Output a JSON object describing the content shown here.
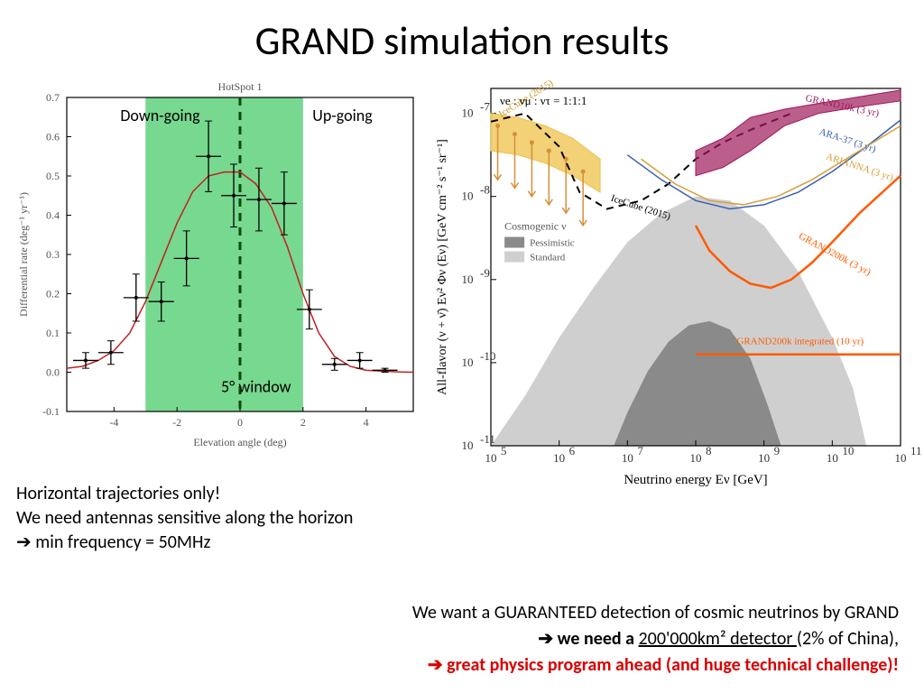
{
  "title": "GRAND simulation results",
  "left_chart": {
    "type": "scatter-with-errorbars-and-curve",
    "title": "HotSpot 1",
    "xlabel": "Elevation angle (deg)",
    "ylabel": "Differential rate (deg⁻¹ yr⁻¹)",
    "xlim": [
      -5.5,
      5.5
    ],
    "xtick_step": 2,
    "ylim": [
      -0.1,
      0.7
    ],
    "ytick_step": 0.1,
    "green_band": {
      "xmin": -3.0,
      "xmax": 2.0,
      "color": "#77d88f"
    },
    "dashed_vline_x": 0.0,
    "dashed_color": "#0a4a0a",
    "data_points": [
      {
        "x": -4.9,
        "y": 0.03,
        "ey": 0.02
      },
      {
        "x": -4.1,
        "y": 0.05,
        "ey": 0.03
      },
      {
        "x": -3.3,
        "y": 0.19,
        "ey": 0.06
      },
      {
        "x": -2.5,
        "y": 0.18,
        "ey": 0.05
      },
      {
        "x": -1.7,
        "y": 0.29,
        "ey": 0.07
      },
      {
        "x": -1.0,
        "y": 0.55,
        "ey": 0.09
      },
      {
        "x": -0.2,
        "y": 0.45,
        "ey": 0.08
      },
      {
        "x": 0.6,
        "y": 0.44,
        "ey": 0.08
      },
      {
        "x": 1.4,
        "y": 0.43,
        "ey": 0.08
      },
      {
        "x": 2.2,
        "y": 0.16,
        "ey": 0.05
      },
      {
        "x": 3.0,
        "y": 0.02,
        "ey": 0.015
      },
      {
        "x": 3.8,
        "y": 0.03,
        "ey": 0.02
      },
      {
        "x": 4.6,
        "y": 0.005,
        "ey": 0.005
      }
    ],
    "curve_color": "#c02020",
    "curve": [
      [
        -5.5,
        0.01
      ],
      [
        -5,
        0.015
      ],
      [
        -4.5,
        0.03
      ],
      [
        -4,
        0.055
      ],
      [
        -3.5,
        0.1
      ],
      [
        -3,
        0.18
      ],
      [
        -2.5,
        0.28
      ],
      [
        -2,
        0.38
      ],
      [
        -1.5,
        0.46
      ],
      [
        -1,
        0.5
      ],
      [
        -0.5,
        0.51
      ],
      [
        0,
        0.51
      ],
      [
        0.5,
        0.48
      ],
      [
        1,
        0.42
      ],
      [
        1.5,
        0.32
      ],
      [
        2,
        0.2
      ],
      [
        2.5,
        0.1
      ],
      [
        3,
        0.04
      ],
      [
        3.5,
        0.015
      ],
      [
        4,
        0.005
      ],
      [
        5,
        0.001
      ],
      [
        5.5,
        0.0
      ]
    ],
    "annotations": {
      "down_going": "Down-going",
      "up_going": "Up-going",
      "window": "5° window"
    },
    "axis_fontsize": 14,
    "tick_fontsize": 11
  },
  "right_chart": {
    "type": "sensitivity-plot-loglog",
    "xlabel": "Neutrino energy Eν [GeV]",
    "ylabel": "All-flavor (ν + ν̄) Eν² Φν (Eν) [GeV cm⁻² s⁻¹ sr⁻¹]",
    "top_text": "νe : νμ : ντ = 1:1:1",
    "xlim_log": [
      5,
      11
    ],
    "ylim_log": [
      -11,
      -6.7
    ],
    "xtick_log": [
      5,
      6,
      7,
      8,
      9,
      10,
      11
    ],
    "ytick_log": [
      -11,
      -10,
      -9,
      -8,
      -7
    ],
    "grey_regions": {
      "standard_color": "#cfcfcf",
      "pessimistic_color": "#8a8a8a"
    },
    "legend_box": {
      "title": "Cosmogenic ν",
      "items": [
        "Pessimistic",
        "Standard"
      ]
    },
    "curves": {
      "icecube_limit": {
        "label": "IceCube (2015)",
        "color": "#000000",
        "dash": true,
        "width": 2,
        "pts": [
          [
            5,
            -7.1
          ],
          [
            5.5,
            -7.0
          ],
          [
            6,
            -7.4
          ],
          [
            6.3,
            -7.95
          ],
          [
            6.7,
            -8.15
          ],
          [
            7.2,
            -8.05
          ],
          [
            7.6,
            -7.85
          ],
          [
            8,
            -7.55
          ],
          [
            8.4,
            -7.35
          ],
          [
            8.8,
            -7.2
          ],
          [
            9.4,
            -7.0
          ]
        ]
      },
      "grand10k": {
        "label": "GRAND10k (3 yr)",
        "color": "#9e1a5a",
        "fill": "rgba(158,26,90,0.7)",
        "band_top": [
          [
            8,
            -7.45
          ],
          [
            8.4,
            -7.3
          ],
          [
            8.8,
            -7.05
          ],
          [
            9.3,
            -6.95
          ],
          [
            9.8,
            -6.88
          ],
          [
            10.4,
            -6.8
          ],
          [
            11,
            -6.72
          ]
        ],
        "band_bot": [
          [
            8,
            -7.75
          ],
          [
            8.4,
            -7.65
          ],
          [
            8.8,
            -7.45
          ],
          [
            9.3,
            -7.15
          ],
          [
            9.8,
            -7.0
          ],
          [
            10.4,
            -6.92
          ],
          [
            11,
            -6.85
          ]
        ]
      },
      "ara37": {
        "label": "ARA-37 (3 yr)",
        "color": "#3a5fb0",
        "width": 1.5,
        "pts": [
          [
            7,
            -7.5
          ],
          [
            7.5,
            -7.8
          ],
          [
            8,
            -8.05
          ],
          [
            8.5,
            -8.15
          ],
          [
            9,
            -8.1
          ],
          [
            9.5,
            -7.95
          ],
          [
            10,
            -7.7
          ],
          [
            10.5,
            -7.4
          ],
          [
            11,
            -7.08
          ]
        ]
      },
      "arianna": {
        "label": "ARIANNA (3 yr)",
        "color": "#d4a13a",
        "width": 1.5,
        "pts": [
          [
            7.2,
            -7.55
          ],
          [
            7.7,
            -7.85
          ],
          [
            8.2,
            -8.05
          ],
          [
            8.7,
            -8.1
          ],
          [
            9.2,
            -8.0
          ],
          [
            9.7,
            -7.8
          ],
          [
            10.2,
            -7.55
          ],
          [
            10.7,
            -7.3
          ],
          [
            11,
            -7.15
          ]
        ]
      },
      "grand200k": {
        "label": "GRAND200k (3 yr)",
        "color": "#ff5a00",
        "width": 2.5,
        "pts": [
          [
            8,
            -8.35
          ],
          [
            8.2,
            -8.65
          ],
          [
            8.5,
            -8.9
          ],
          [
            8.8,
            -9.05
          ],
          [
            9.1,
            -9.1
          ],
          [
            9.4,
            -9.0
          ],
          [
            9.7,
            -8.8
          ],
          [
            10,
            -8.55
          ],
          [
            10.4,
            -8.2
          ],
          [
            10.8,
            -7.9
          ],
          [
            11,
            -7.75
          ]
        ]
      },
      "grand200k_int": {
        "label": "GRAND200k integrated (10 yr)",
        "color": "#ff5a00",
        "width": 2.5,
        "pts": [
          [
            8,
            -9.9
          ],
          [
            11,
            -9.9
          ]
        ]
      },
      "icecube_band": {
        "label": "IceCube (2015)",
        "color": "#eec24a",
        "fill": "rgba(238,194,74,0.75)",
        "band_top": [
          [
            5,
            -7.0
          ],
          [
            5.4,
            -7.05
          ],
          [
            5.8,
            -7.15
          ],
          [
            6.2,
            -7.3
          ],
          [
            6.6,
            -7.55
          ]
        ],
        "band_bot": [
          [
            5,
            -7.45
          ],
          [
            5.4,
            -7.5
          ],
          [
            5.8,
            -7.6
          ],
          [
            6.2,
            -7.75
          ],
          [
            6.6,
            -7.95
          ]
        ]
      }
    },
    "upper_limits_arrows": {
      "color": "#d4903a",
      "width": 1.5,
      "pts": [
        [
          5.1,
          -7.15,
          -7.8
        ],
        [
          5.35,
          -7.25,
          -7.9
        ],
        [
          5.6,
          -7.35,
          -8.0
        ],
        [
          5.85,
          -7.45,
          -8.1
        ],
        [
          6.1,
          -7.55,
          -8.2
        ],
        [
          6.35,
          -7.7,
          -8.35
        ]
      ]
    },
    "standard_region_pts_top": [
      [
        5,
        -11
      ],
      [
        5.5,
        -10.4
      ],
      [
        6,
        -9.7
      ],
      [
        6.5,
        -9.1
      ],
      [
        7,
        -8.55
      ],
      [
        7.5,
        -8.2
      ],
      [
        8,
        -8.0
      ],
      [
        8.5,
        -8.05
      ],
      [
        9,
        -8.35
      ],
      [
        9.5,
        -8.9
      ],
      [
        10,
        -9.7
      ],
      [
        10.3,
        -10.3
      ],
      [
        10.5,
        -11
      ]
    ],
    "pessimistic_region_pts_top": [
      [
        6.8,
        -11
      ],
      [
        7,
        -10.6
      ],
      [
        7.3,
        -10.1
      ],
      [
        7.6,
        -9.75
      ],
      [
        7.9,
        -9.55
      ],
      [
        8.2,
        -9.5
      ],
      [
        8.5,
        -9.6
      ],
      [
        8.8,
        -9.95
      ],
      [
        9.05,
        -10.5
      ],
      [
        9.25,
        -11
      ]
    ]
  },
  "left_notes": {
    "line1": "Horizontal trajectories only!",
    "line2": "We need antennas sensitive along the horizon",
    "line3": "➔ min frequency = 50MHz"
  },
  "bottom_notes": {
    "line1": "We want a GUARANTEED detection of cosmic neutrinos by GRAND",
    "line2_pre": "➔ we need a ",
    "line2_ul": "200'000km² detector ",
    "line2_post": "(2% of China),",
    "line3": "➔ great physics program ahead (and huge technical challenge)!"
  }
}
